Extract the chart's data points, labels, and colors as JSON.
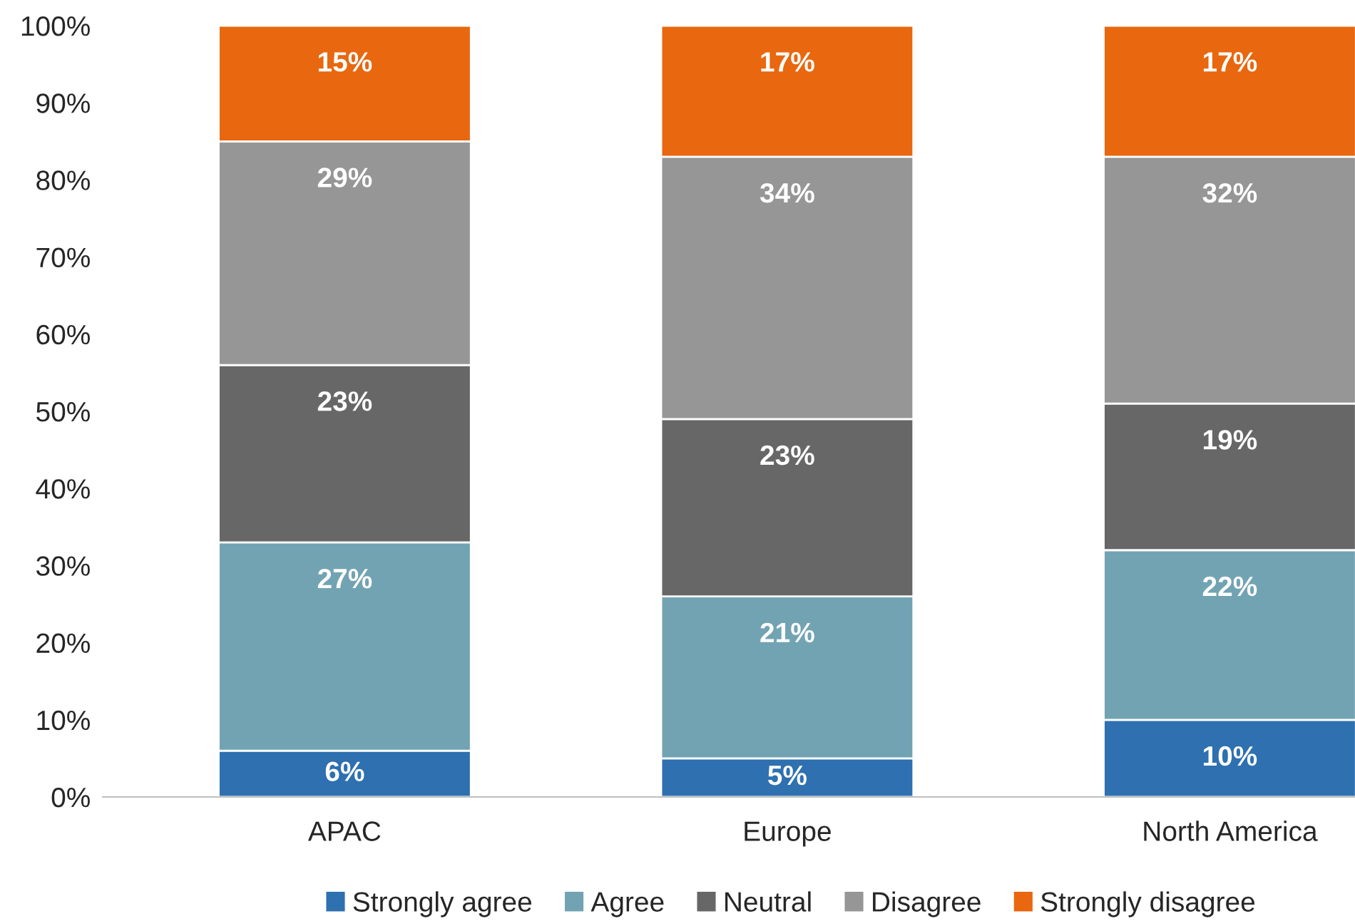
{
  "chart_data": {
    "type": "bar",
    "stacked": true,
    "categories": [
      "APAC",
      "Europe",
      "North America"
    ],
    "series": [
      {
        "name": "Strongly agree",
        "color": "#2e70b0",
        "values": [
          6,
          5,
          10
        ],
        "value_labels": [
          "6%",
          "5%",
          "10%"
        ]
      },
      {
        "name": "Agree",
        "color": "#72a3b3",
        "values": [
          27,
          21,
          22
        ],
        "value_labels": [
          "27%",
          "21%",
          "22%"
        ]
      },
      {
        "name": "Neutral",
        "color": "#676767",
        "values": [
          23,
          23,
          19
        ],
        "value_labels": [
          "23%",
          "23%",
          "19%"
        ]
      },
      {
        "name": "Disagree",
        "color": "#969696",
        "values": [
          29,
          34,
          32
        ],
        "value_labels": [
          "29%",
          "34%",
          "32%"
        ]
      },
      {
        "name": "Strongly disagree",
        "color": "#e8670f",
        "values": [
          15,
          17,
          17
        ],
        "value_labels": [
          "15%",
          "17%",
          "17%"
        ]
      }
    ],
    "ylim": [
      0,
      100
    ],
    "yticks": [
      {
        "value": 0,
        "label": "0%"
      },
      {
        "value": 10,
        "label": "10%"
      },
      {
        "value": 20,
        "label": "20%"
      },
      {
        "value": 30,
        "label": "30%"
      },
      {
        "value": 40,
        "label": "40%"
      },
      {
        "value": 50,
        "label": "50%"
      },
      {
        "value": 60,
        "label": "60%"
      },
      {
        "value": 70,
        "label": "70%"
      },
      {
        "value": 80,
        "label": "80%"
      },
      {
        "value": 90,
        "label": "90%"
      },
      {
        "value": 100,
        "label": "100%"
      }
    ],
    "grid": false,
    "legend": "bottom"
  }
}
